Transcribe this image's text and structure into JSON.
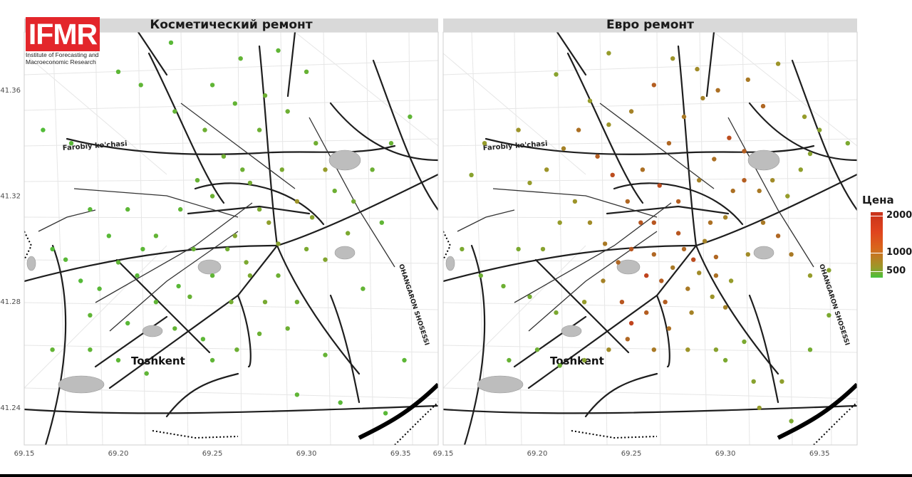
{
  "branding": {
    "logo_text": "IFMR",
    "org_line1": "Institute of Forecasting and",
    "org_line2": "Macroeconomic Research",
    "brand_color": "#e3262b"
  },
  "panels": [
    {
      "title": "Косметический ремонт"
    },
    {
      "title": "Евро ремонт"
    }
  ],
  "map_labels": {
    "city": "Toshkent",
    "street_farobiy": "Farobiy ko'chasi",
    "highway": "OHANGARON SHOSESSI"
  },
  "axes": {
    "x_ticks": [
      "69.15",
      "69.20",
      "69.25",
      "69.30",
      "69.35"
    ],
    "y_ticks": [
      "41.36",
      "41.32",
      "41.28",
      "41.24"
    ]
  },
  "legend": {
    "title": "Цена",
    "labels": [
      "2000",
      "1000",
      "500"
    ],
    "color_low": "#45c23b",
    "color_mid": "#9a9a2a",
    "color_high": "#c8321b"
  },
  "chart_data": {
    "type": "scatter",
    "x_range": [
      69.15,
      69.37
    ],
    "y_range": [
      41.226,
      41.382
    ],
    "color_scale": {
      "min": 300,
      "max": 2100,
      "ticks": [
        500,
        1000,
        2000
      ]
    },
    "series": [
      {
        "name": "Косметический ремонт",
        "points": [
          [
            69.278,
            41.358,
            600
          ],
          [
            69.27,
            41.325,
            650
          ],
          [
            69.275,
            41.315,
            700
          ],
          [
            69.285,
            41.302,
            800
          ],
          [
            69.266,
            41.33,
            600
          ],
          [
            69.24,
            41.3,
            550
          ],
          [
            69.25,
            41.29,
            500
          ],
          [
            69.232,
            41.286,
            450
          ],
          [
            69.22,
            41.28,
            500
          ],
          [
            69.21,
            41.29,
            450
          ],
          [
            69.2,
            41.295,
            500
          ],
          [
            69.19,
            41.285,
            450
          ],
          [
            69.18,
            41.288,
            420
          ],
          [
            69.172,
            41.296,
            450
          ],
          [
            69.165,
            41.3,
            400
          ],
          [
            69.185,
            41.275,
            500
          ],
          [
            69.205,
            41.272,
            450
          ],
          [
            69.23,
            41.27,
            520
          ],
          [
            69.245,
            41.266,
            480
          ],
          [
            69.26,
            41.28,
            650
          ],
          [
            69.268,
            41.295,
            700
          ],
          [
            69.285,
            41.29,
            600
          ],
          [
            69.295,
            41.28,
            620
          ],
          [
            69.3,
            41.3,
            700
          ],
          [
            69.31,
            41.296,
            750
          ],
          [
            69.315,
            41.322,
            600
          ],
          [
            69.325,
            41.318,
            650
          ],
          [
            69.335,
            41.33,
            600
          ],
          [
            69.345,
            41.34,
            550
          ],
          [
            69.355,
            41.35,
            500
          ],
          [
            69.34,
            41.31,
            500
          ],
          [
            69.33,
            41.285,
            520
          ],
          [
            69.31,
            41.26,
            540
          ],
          [
            69.295,
            41.245,
            500
          ],
          [
            69.318,
            41.242,
            450
          ],
          [
            69.342,
            41.238,
            450
          ],
          [
            69.352,
            41.258,
            480
          ],
          [
            69.25,
            41.32,
            580
          ],
          [
            69.256,
            41.335,
            620
          ],
          [
            69.246,
            41.345,
            600
          ],
          [
            69.23,
            41.352,
            520
          ],
          [
            69.212,
            41.362,
            500
          ],
          [
            69.2,
            41.367,
            480
          ],
          [
            69.228,
            41.378,
            450
          ],
          [
            69.265,
            41.372,
            520
          ],
          [
            69.285,
            41.375,
            500
          ],
          [
            69.3,
            41.367,
            550
          ],
          [
            69.29,
            41.352,
            600
          ],
          [
            69.305,
            41.34,
            620
          ],
          [
            69.31,
            41.33,
            900
          ],
          [
            69.295,
            41.318,
            1000
          ],
          [
            69.28,
            41.31,
            850
          ],
          [
            69.262,
            41.305,
            750
          ],
          [
            69.27,
            41.29,
            700
          ],
          [
            69.278,
            41.28,
            680
          ],
          [
            69.29,
            41.27,
            600
          ],
          [
            69.22,
            41.305,
            520
          ],
          [
            69.205,
            41.315,
            480
          ],
          [
            69.185,
            41.315,
            450
          ],
          [
            69.175,
            41.34,
            450
          ],
          [
            69.16,
            41.345,
            400
          ],
          [
            69.165,
            41.262,
            520
          ],
          [
            69.185,
            41.262,
            500
          ],
          [
            69.2,
            41.258,
            480
          ],
          [
            69.215,
            41.253,
            500
          ],
          [
            69.25,
            41.258,
            500
          ],
          [
            69.263,
            41.262,
            600
          ],
          [
            69.275,
            41.268,
            580
          ],
          [
            69.238,
            41.282,
            550
          ],
          [
            69.258,
            41.3,
            620
          ],
          [
            69.287,
            41.33,
            700
          ],
          [
            69.303,
            41.312,
            800
          ],
          [
            69.322,
            41.306,
            700
          ],
          [
            69.275,
            41.345,
            600
          ],
          [
            69.262,
            41.355,
            520
          ],
          [
            69.25,
            41.362,
            500
          ],
          [
            69.242,
            41.326,
            550
          ],
          [
            69.233,
            41.315,
            500
          ],
          [
            69.213,
            41.3,
            470
          ],
          [
            69.195,
            41.305,
            440
          ]
        ]
      },
      {
        "name": "Евро ремонт",
        "points": [
          [
            69.278,
            41.3,
            1500
          ],
          [
            69.283,
            41.296,
            1800
          ],
          [
            69.272,
            41.293,
            1300
          ],
          [
            69.266,
            41.288,
            1600
          ],
          [
            69.289,
            41.303,
            1200
          ],
          [
            69.292,
            41.31,
            1400
          ],
          [
            69.275,
            41.306,
            1700
          ],
          [
            69.262,
            41.298,
            1500
          ],
          [
            69.258,
            41.29,
            1900
          ],
          [
            69.268,
            41.28,
            1600
          ],
          [
            69.28,
            41.285,
            1300
          ],
          [
            69.286,
            41.291,
            1100
          ],
          [
            69.295,
            41.297,
            1500
          ],
          [
            69.3,
            41.312,
            1200
          ],
          [
            69.304,
            41.322,
            1400
          ],
          [
            69.31,
            41.326,
            1600
          ],
          [
            69.318,
            41.322,
            1300
          ],
          [
            69.325,
            41.326,
            1100
          ],
          [
            69.333,
            41.32,
            900
          ],
          [
            69.34,
            41.33,
            850
          ],
          [
            69.345,
            41.336,
            800
          ],
          [
            69.255,
            41.31,
            1700
          ],
          [
            69.248,
            41.318,
            1500
          ],
          [
            69.24,
            41.328,
            1800
          ],
          [
            69.232,
            41.335,
            1600
          ],
          [
            69.222,
            41.345,
            1400
          ],
          [
            69.214,
            41.338,
            1200
          ],
          [
            69.205,
            41.33,
            1000
          ],
          [
            69.196,
            41.325,
            900
          ],
          [
            69.19,
            41.345,
            1000
          ],
          [
            69.172,
            41.34,
            900
          ],
          [
            69.165,
            41.328,
            800
          ],
          [
            69.16,
            41.3,
            700
          ],
          [
            69.17,
            41.29,
            600
          ],
          [
            69.182,
            41.286,
            600
          ],
          [
            69.196,
            41.282,
            650
          ],
          [
            69.21,
            41.276,
            700
          ],
          [
            69.225,
            41.28,
            900
          ],
          [
            69.235,
            41.288,
            1200
          ],
          [
            69.245,
            41.28,
            1700
          ],
          [
            69.25,
            41.272,
            1900
          ],
          [
            69.258,
            41.276,
            1600
          ],
          [
            69.27,
            41.27,
            1400
          ],
          [
            69.282,
            41.276,
            1200
          ],
          [
            69.293,
            41.282,
            1000
          ],
          [
            69.303,
            41.288,
            900
          ],
          [
            69.312,
            41.298,
            1100
          ],
          [
            69.32,
            41.31,
            1300
          ],
          [
            69.328,
            41.305,
            1500
          ],
          [
            69.335,
            41.298,
            1300
          ],
          [
            69.345,
            41.29,
            900
          ],
          [
            69.355,
            41.292,
            800
          ],
          [
            69.31,
            41.265,
            700
          ],
          [
            69.295,
            41.262,
            800
          ],
          [
            69.28,
            41.262,
            1000
          ],
          [
            69.262,
            41.262,
            1300
          ],
          [
            69.248,
            41.266,
            1500
          ],
          [
            69.238,
            41.262,
            1100
          ],
          [
            69.225,
            41.258,
            800
          ],
          [
            69.212,
            41.256,
            600
          ],
          [
            69.2,
            41.262,
            600
          ],
          [
            69.185,
            41.258,
            550
          ],
          [
            69.27,
            41.34,
            1500
          ],
          [
            69.278,
            41.35,
            1300
          ],
          [
            69.288,
            41.357,
            1200
          ],
          [
            69.296,
            41.36,
            1400
          ],
          [
            69.285,
            41.368,
            1100
          ],
          [
            69.272,
            41.372,
            1000
          ],
          [
            69.262,
            41.362,
            1600
          ],
          [
            69.25,
            41.352,
            1200
          ],
          [
            69.238,
            41.347,
            1000
          ],
          [
            69.228,
            41.356,
            900
          ],
          [
            69.21,
            41.366,
            800
          ],
          [
            69.238,
            41.374,
            900
          ],
          [
            69.312,
            41.364,
            1300
          ],
          [
            69.32,
            41.354,
            1500
          ],
          [
            69.328,
            41.37,
            1000
          ],
          [
            69.342,
            41.35,
            900
          ],
          [
            69.35,
            41.345,
            800
          ],
          [
            69.365,
            41.34,
            700
          ],
          [
            69.31,
            41.337,
            1600
          ],
          [
            69.302,
            41.342,
            1800
          ],
          [
            69.294,
            41.334,
            1400
          ],
          [
            69.286,
            41.326,
            1200
          ],
          [
            69.275,
            41.318,
            1600
          ],
          [
            69.265,
            41.324,
            1800
          ],
          [
            69.256,
            41.33,
            1400
          ],
          [
            69.262,
            41.31,
            1700
          ],
          [
            69.295,
            41.29,
            1400
          ],
          [
            69.3,
            41.278,
            1200
          ],
          [
            69.3,
            41.258,
            700
          ],
          [
            69.315,
            41.25,
            800
          ],
          [
            69.335,
            41.235,
            700
          ],
          [
            69.345,
            41.262,
            650
          ],
          [
            69.355,
            41.275,
            700
          ],
          [
            69.318,
            41.24,
            900
          ],
          [
            69.33,
            41.25,
            850
          ],
          [
            69.25,
            41.3,
            1700
          ],
          [
            69.243,
            41.295,
            1500
          ],
          [
            69.236,
            41.302,
            1300
          ],
          [
            69.228,
            41.31,
            1100
          ],
          [
            69.22,
            41.318,
            1000
          ],
          [
            69.212,
            41.31,
            900
          ],
          [
            69.203,
            41.3,
            800
          ],
          [
            69.19,
            41.3,
            700
          ]
        ]
      }
    ]
  }
}
